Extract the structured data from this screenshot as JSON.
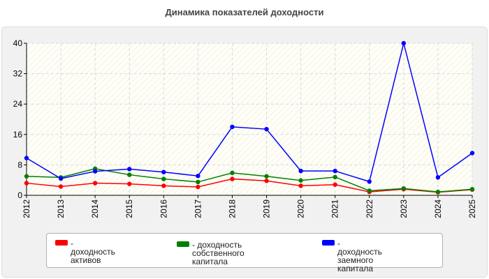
{
  "colors": {
    "series_assets": "#ff0000",
    "series_equity": "#008000",
    "series_debt": "#0000ff",
    "grid": "#d8d8d8",
    "axis": "#000000"
  },
  "chart_data": {
    "type": "line",
    "title": "Динамика показателей доходности",
    "xlabel": "",
    "ylabel": "",
    "grid": true,
    "legend_position": "bottom",
    "ylim": [
      0,
      40
    ],
    "yticks": [
      "0",
      "8",
      "16",
      "24",
      "32",
      "40"
    ],
    "categories": [
      "2012",
      "2013",
      "2014",
      "2015",
      "2016",
      "2017",
      "2018",
      "2019",
      "2020",
      "2021",
      "2022",
      "2023",
      "2024",
      "2025"
    ],
    "series": [
      {
        "name": "- доходность активов",
        "color": "#ff0000",
        "values": [
          3.2,
          2.3,
          3.2,
          3.0,
          2.5,
          2.2,
          4.3,
          3.8,
          2.5,
          2.8,
          0.9,
          1.6,
          0.8,
          1.5
        ]
      },
      {
        "name": "- доходность собственного\nкапитала",
        "color": "#008000",
        "values": [
          5.0,
          4.7,
          7.0,
          5.4,
          4.3,
          3.5,
          5.9,
          5.0,
          3.9,
          4.8,
          1.2,
          1.8,
          0.9,
          1.6
        ]
      },
      {
        "name": "- доходность заемного\nкапитала",
        "color": "#0000ff",
        "values": [
          9.8,
          4.4,
          6.3,
          6.9,
          6.1,
          5.1,
          18.0,
          17.4,
          6.4,
          6.4,
          3.6,
          40.0,
          4.7,
          11.1
        ]
      }
    ]
  }
}
